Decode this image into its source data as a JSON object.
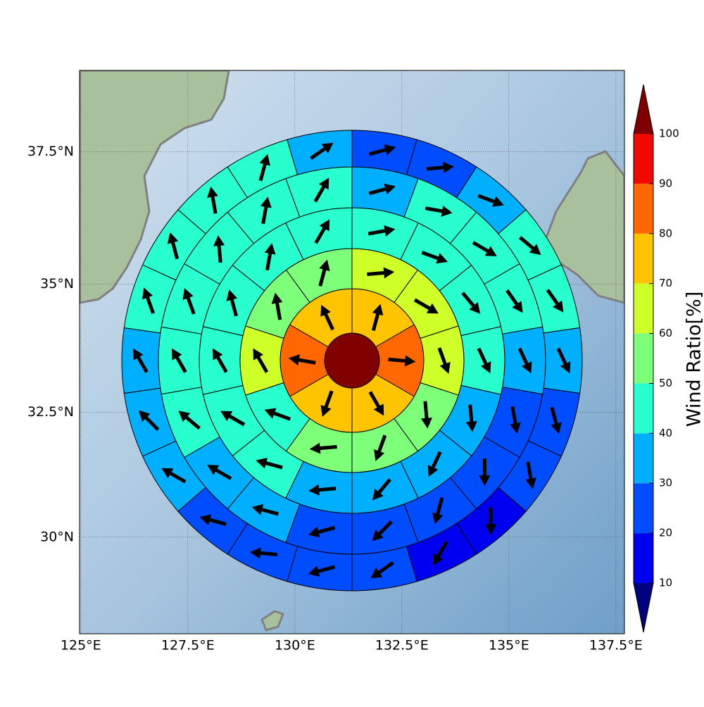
{
  "chart_data": {
    "type": "polar-sector-map",
    "xlim": [
      124.97,
      137.7
    ],
    "ylim": [
      28.02,
      39.0
    ],
    "projection": "mercator",
    "grid": true,
    "xticks": [
      {
        "value": 125,
        "label": "125°E"
      },
      {
        "value": 127.5,
        "label": "127.5°E"
      },
      {
        "value": 130,
        "label": "130°E"
      },
      {
        "value": 132.5,
        "label": "132.5°E"
      },
      {
        "value": 135,
        "label": "135°E"
      },
      {
        "value": 137.5,
        "label": "137.5°E"
      }
    ],
    "yticks": [
      {
        "value": 30,
        "label": "30°N"
      },
      {
        "value": 32.5,
        "label": "32.5°N"
      },
      {
        "value": 35,
        "label": "35°N"
      },
      {
        "value": 37.5,
        "label": "37.5°N"
      }
    ],
    "colorbar": {
      "label": "Wind Ratio[%]",
      "levels": [
        10,
        20,
        30,
        40,
        50,
        60,
        70,
        80,
        90,
        100
      ],
      "colors": [
        "#0000f1",
        "#004cff",
        "#00b0ff",
        "#29ffce",
        "#7dff7a",
        "#ceff29",
        "#ffc400",
        "#ff6800",
        "#f10800"
      ],
      "under_color": "#00007f",
      "over_color": "#800000"
    },
    "arrow_color": "#000000",
    "rings": [
      {
        "values": [
          100
        ]
      },
      {
        "values": [
          75,
          85,
          75,
          75,
          85,
          75
        ],
        "directions": [
          15,
          95,
          150,
          200,
          280,
          335
        ]
      },
      {
        "values": [
          65,
          65,
          65,
          55,
          55,
          55,
          45,
          65,
          55,
          55
        ],
        "directions": [
          85,
          120,
          160,
          175,
          200,
          265,
          290,
          330,
          350,
          15
        ]
      },
      {
        "values": [
          45,
          45,
          45,
          45,
          35,
          35,
          35,
          35,
          45,
          45,
          45,
          45,
          45,
          45
        ],
        "directions": [
          80,
          110,
          140,
          155,
          175,
          205,
          220,
          265,
          285,
          300,
          330,
          345,
          10,
          30
        ]
      },
      {
        "values": [
          35,
          45,
          45,
          45,
          35,
          25,
          25,
          25,
          25,
          25,
          35,
          35,
          45,
          45,
          45,
          45,
          45,
          45
        ],
        "directions": [
          75,
          100,
          120,
          145,
          155,
          170,
          180,
          195,
          225,
          255,
          285,
          300,
          310,
          330,
          340,
          355,
          10,
          30
        ]
      },
      {
        "values": [
          25,
          25,
          35,
          45,
          45,
          35,
          25,
          25,
          15,
          15,
          25,
          25,
          25,
          25,
          35,
          35,
          35,
          45,
          45,
          45,
          45,
          35
        ],
        "directions": [
          75,
          85,
          110,
          130,
          145,
          155,
          165,
          170,
          180,
          210,
          235,
          255,
          275,
          285,
          300,
          315,
          330,
          340,
          345,
          350,
          15,
          55
        ]
      }
    ]
  }
}
